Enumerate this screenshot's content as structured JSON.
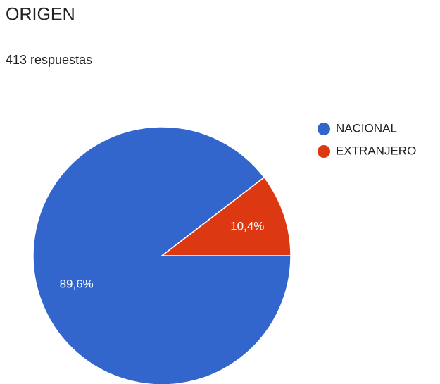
{
  "chart_data": {
    "type": "pie",
    "title": "ORIGEN",
    "subtitle": "413 respuestas",
    "categories": [
      "NACIONAL",
      "EXTRANJERO"
    ],
    "values": [
      89.6,
      10.4
    ],
    "value_labels": [
      "89,6%",
      "10,4%"
    ],
    "colors": [
      "#3366cc",
      "#dc3912"
    ],
    "legend": "right"
  }
}
